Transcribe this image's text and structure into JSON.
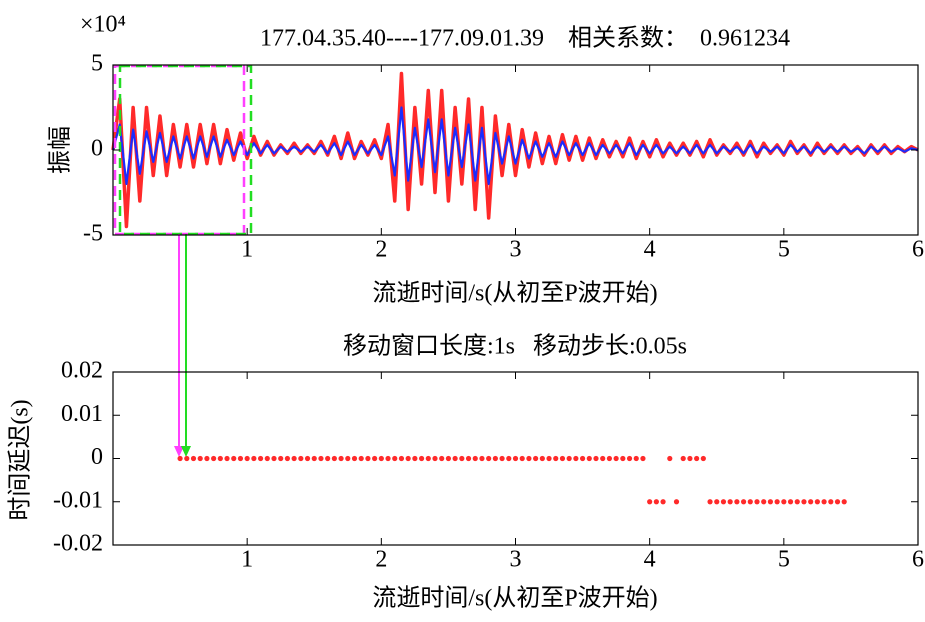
{
  "chart_data": [
    {
      "type": "line",
      "title": "177.04.35.40----177.09.01.39    相关系数：  0.961234",
      "y_multiplier": "×10⁴",
      "ylabel": "振幅",
      "xlabel": "流逝时间/s(从初至P波开始)",
      "xlim": [
        0,
        6
      ],
      "xticks": [
        1,
        2,
        3,
        4,
        5,
        6
      ],
      "ylim": [
        -5,
        5
      ],
      "yticks": [
        -5,
        0,
        5
      ],
      "x": [
        0,
        0.05,
        0.1,
        0.15,
        0.2,
        0.25,
        0.3,
        0.35,
        0.4,
        0.45,
        0.5,
        0.55,
        0.6,
        0.65,
        0.7,
        0.75,
        0.8,
        0.85,
        0.9,
        0.95,
        1,
        1.05,
        1.1,
        1.15,
        1.2,
        1.25,
        1.3,
        1.35,
        1.4,
        1.45,
        1.5,
        1.55,
        1.6,
        1.65,
        1.7,
        1.75,
        1.8,
        1.85,
        1.9,
        1.95,
        2,
        2.05,
        2.1,
        2.15,
        2.2,
        2.25,
        2.3,
        2.35,
        2.4,
        2.45,
        2.5,
        2.55,
        2.6,
        2.65,
        2.7,
        2.75,
        2.8,
        2.85,
        2.9,
        2.95,
        3,
        3.05,
        3.1,
        3.15,
        3.2,
        3.25,
        3.3,
        3.35,
        3.4,
        3.45,
        3.5,
        3.55,
        3.6,
        3.65,
        3.7,
        3.75,
        3.8,
        3.85,
        3.9,
        3.95,
        4,
        4.05,
        4.1,
        4.15,
        4.2,
        4.25,
        4.3,
        4.35,
        4.4,
        4.45,
        4.5,
        4.55,
        4.6,
        4.65,
        4.7,
        4.75,
        4.8,
        4.85,
        4.9,
        4.95,
        5,
        5.05,
        5.1,
        5.15,
        5.2,
        5.25,
        5.3,
        5.35,
        5.4,
        5.45,
        5.5,
        5.55,
        5.6,
        5.65,
        5.7,
        5.75,
        5.8,
        5.85,
        5.9,
        5.95,
        6
      ],
      "series": [
        {
          "color": "#ff2a2a",
          "values": [
            0,
            3,
            -4.5,
            2.5,
            -3,
            2.5,
            -1.5,
            2,
            -1.5,
            1.5,
            -1,
            1.5,
            -1,
            1.5,
            -0.8,
            1.5,
            -0.8,
            1.2,
            -0.6,
            1,
            -0.5,
            0.8,
            -0.3,
            0.5,
            -0.3,
            0.3,
            -0.2,
            0.4,
            -0.2,
            0.3,
            -0.2,
            0.5,
            -0.3,
            0.8,
            -0.5,
            1,
            -0.5,
            0.5,
            -0.3,
            0.6,
            -0.5,
            1.5,
            -3,
            4.5,
            -3.5,
            2.5,
            -2,
            3.5,
            -2.5,
            3.5,
            -3,
            2.5,
            -2,
            3,
            -3.5,
            2.5,
            -4,
            2,
            -1.5,
            1.5,
            -1.5,
            1.2,
            -1,
            1,
            -0.8,
            0.8,
            -0.8,
            0.9,
            -0.6,
            0.8,
            -0.6,
            0.7,
            -0.5,
            0.6,
            -0.4,
            0.5,
            -0.4,
            0.7,
            -0.5,
            0.5,
            -0.4,
            0.6,
            -0.4,
            0.4,
            -0.3,
            0.4,
            -0.3,
            0.5,
            -0.4,
            0.6,
            -0.3,
            0.3,
            -0.2,
            0.4,
            -0.3,
            0.5,
            -0.4,
            0.4,
            -0.2,
            0.3,
            -0.3,
            0.5,
            -0.2,
            0.3,
            -0.3,
            0.4,
            -0.2,
            0.3,
            -0.2,
            0.3,
            -0.2,
            0.2,
            -0.3,
            0.3,
            -0.2,
            0.3,
            -0.2,
            0.2,
            -0.1,
            0.2,
            0
          ]
        },
        {
          "color": "#1a2cff",
          "values": [
            0,
            1.5,
            -2,
            1.2,
            -1.4,
            1.1,
            -0.7,
            1,
            -0.7,
            0.8,
            -0.5,
            0.8,
            -0.5,
            0.8,
            -0.4,
            0.8,
            -0.4,
            0.6,
            -0.3,
            0.5,
            -0.3,
            0.4,
            -0.2,
            0.3,
            -0.2,
            0.2,
            -0.1,
            0.2,
            -0.1,
            0.2,
            -0.1,
            0.3,
            -0.2,
            0.4,
            -0.3,
            0.5,
            -0.3,
            0.3,
            -0.2,
            0.3,
            -0.3,
            0.8,
            -1.5,
            2.5,
            -1.8,
            1.3,
            -1,
            1.8,
            -1.3,
            1.8,
            -1.5,
            1.3,
            -1,
            1.5,
            -1.8,
            1.3,
            -2,
            1,
            -0.8,
            0.8,
            -0.8,
            0.6,
            -0.5,
            0.5,
            -0.4,
            0.4,
            -0.4,
            0.5,
            -0.3,
            0.4,
            -0.3,
            0.4,
            -0.3,
            0.3,
            -0.2,
            0.3,
            -0.2,
            0.4,
            -0.3,
            0.3,
            -0.2,
            0.3,
            -0.2,
            0.2,
            -0.2,
            0.2,
            -0.2,
            0.3,
            -0.2,
            0.3,
            -0.2,
            0.2,
            -0.1,
            0.2,
            -0.2,
            0.3,
            -0.2,
            0.2,
            -0.1,
            0.2,
            -0.2,
            0.3,
            -0.1,
            0.2,
            -0.2,
            0.2,
            -0.1,
            0.2,
            -0.1,
            0.2,
            -0.1,
            0.1,
            -0.2,
            0.2,
            -0.1,
            0.2,
            -0.1,
            0.1,
            -0.1,
            0.1,
            0
          ]
        }
      ]
    },
    {
      "type": "scatter",
      "title": "移动窗口长度:1s   移动步长:0.05s",
      "ylabel": "时间延迟(s)",
      "xlabel": "流逝时间/s(从初至P波开始)",
      "xlim": [
        0,
        6
      ],
      "xticks": [
        1,
        2,
        3,
        4,
        5,
        6
      ],
      "ylim": [
        -0.02,
        0.02
      ],
      "yticks": [
        -0.02,
        -0.01,
        0,
        0.01,
        0.02
      ],
      "color": "#ff2a2a",
      "x": [
        0.5,
        0.55,
        0.6,
        0.65,
        0.7,
        0.75,
        0.8,
        0.85,
        0.9,
        0.95,
        1,
        1.05,
        1.1,
        1.15,
        1.2,
        1.25,
        1.3,
        1.35,
        1.4,
        1.45,
        1.5,
        1.55,
        1.6,
        1.65,
        1.7,
        1.75,
        1.8,
        1.85,
        1.9,
        1.95,
        2,
        2.05,
        2.1,
        2.15,
        2.2,
        2.25,
        2.3,
        2.35,
        2.4,
        2.45,
        2.5,
        2.55,
        2.6,
        2.65,
        2.7,
        2.75,
        2.8,
        2.85,
        2.9,
        2.95,
        3,
        3.05,
        3.1,
        3.15,
        3.2,
        3.25,
        3.3,
        3.35,
        3.4,
        3.45,
        3.5,
        3.55,
        3.6,
        3.65,
        3.7,
        3.75,
        3.8,
        3.85,
        3.9,
        3.95,
        4,
        4.05,
        4.1,
        4.15,
        4.2,
        4.25,
        4.3,
        4.35,
        4.4,
        4.45,
        4.5,
        4.55,
        4.6,
        4.65,
        4.7,
        4.75,
        4.8,
        4.85,
        4.9,
        4.95,
        5,
        5.05,
        5.1,
        5.15,
        5.2,
        5.25,
        5.3,
        5.35,
        5.4,
        5.45
      ],
      "values": [
        0,
        0,
        0,
        0,
        0,
        0,
        0,
        0,
        0,
        0,
        0,
        0,
        0,
        0,
        0,
        0,
        0,
        0,
        0,
        0,
        0,
        0,
        0,
        0,
        0,
        0,
        0,
        0,
        0,
        0,
        0,
        0,
        0,
        0,
        0,
        0,
        0,
        0,
        0,
        0,
        0,
        0,
        0,
        0,
        0,
        0,
        0,
        0,
        0,
        0,
        0,
        0,
        0,
        0,
        0,
        0,
        0,
        0,
        0,
        0,
        0,
        0,
        0,
        0,
        0,
        0,
        0,
        0,
        0,
        0,
        -0.01,
        -0.01,
        -0.01,
        0,
        -0.01,
        0,
        0,
        0,
        0,
        -0.01,
        -0.01,
        -0.01,
        -0.01,
        -0.01,
        -0.01,
        -0.01,
        -0.01,
        -0.01,
        -0.01,
        -0.01,
        -0.01,
        -0.01,
        -0.01,
        -0.01,
        -0.01,
        -0.01,
        -0.01,
        -0.01,
        -0.01,
        -0.01
      ]
    }
  ]
}
